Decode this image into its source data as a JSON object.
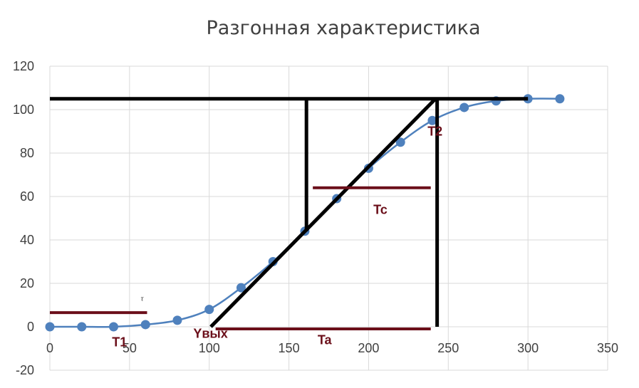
{
  "chart_data": {
    "type": "scatter",
    "title": "Разгонная характеристика",
    "xlim": [
      0,
      350
    ],
    "ylim": [
      -20,
      120
    ],
    "x_ticks": [
      0,
      50,
      100,
      150,
      200,
      250,
      300,
      350
    ],
    "y_ticks": [
      -20,
      0,
      20,
      40,
      60,
      80,
      100,
      120
    ],
    "grid": true,
    "legend": "none",
    "series": [
      {
        "color": "#4f81bd",
        "smooth": true,
        "x": [
          0,
          20,
          40,
          60,
          80,
          100,
          120,
          140,
          160,
          180,
          200,
          220,
          240,
          260,
          280,
          300,
          320
        ],
        "y": [
          0,
          0,
          0,
          1,
          3,
          8,
          18,
          30,
          44,
          59,
          73,
          85,
          95,
          101,
          104,
          105,
          105
        ]
      }
    ],
    "overlay_lines": [
      {
        "color": "#000000",
        "x": [
          0,
          300
        ],
        "y": [
          105,
          105
        ]
      },
      {
        "color": "#000000",
        "x": [
          101,
          242
        ],
        "y": [
          0,
          105
        ]
      },
      {
        "color": "#000000",
        "x": [
          161,
          161
        ],
        "y": [
          44,
          105
        ]
      },
      {
        "color": "#000000",
        "x": [
          243,
          243
        ],
        "y": [
          0,
          105
        ]
      },
      {
        "color": "#6b0f1a",
        "x": [
          0,
          61
        ],
        "y": [
          6.5,
          6.5
        ]
      },
      {
        "color": "#6b0f1a",
        "x": [
          165,
          239
        ],
        "y": [
          64,
          64
        ]
      },
      {
        "color": "#6b0f1a",
        "x": [
          104,
          239
        ],
        "y": [
          -1,
          -1
        ]
      }
    ],
    "annotations": [
      {
        "text": "T1",
        "x": 39,
        "y": -9,
        "color": "#6b0f1a"
      },
      {
        "text": "Yвых",
        "x": 90,
        "y": -5,
        "color": "#6b0f1a"
      },
      {
        "text": "Ta",
        "x": 168,
        "y": -8,
        "color": "#6b0f1a"
      },
      {
        "text": "Tc",
        "x": 203,
        "y": 52,
        "color": "#6b0f1a"
      },
      {
        "text": "T2",
        "x": 237,
        "y": 88,
        "color": "#6b0f1a"
      },
      {
        "text": "τ",
        "x": 57,
        "y": 12,
        "color": "#404040",
        "small": true
      }
    ]
  }
}
